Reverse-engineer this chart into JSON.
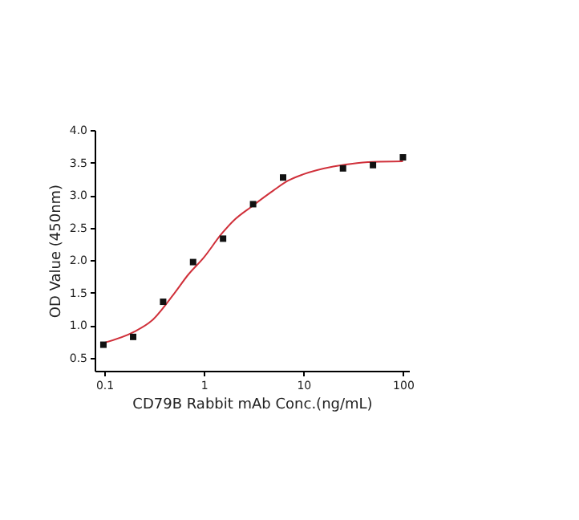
{
  "chart_data": {
    "type": "scatter",
    "xlabel": "CD79B Rabbit mAb Conc.(ng/mL)",
    "ylabel": "OD Value (450nm)",
    "log": "x",
    "xlim": [
      0.08,
      115
    ],
    "xticks": [
      0.1,
      1,
      10,
      100
    ],
    "ylim": [
      0.3,
      4.0
    ],
    "yticks": [
      0.5,
      {
        "value": 1.0,
        "label": "1.0"
      },
      1.5,
      {
        "value": 2.0,
        "label": "2.0"
      },
      2.5,
      {
        "value": 3.0,
        "label": "3.0"
      },
      3.5,
      {
        "value": 4.0,
        "label": "4.0"
      }
    ],
    "grid": false,
    "series": [
      {
        "color": "#111111",
        "marker": "square",
        "x": [
          0.098,
          0.195,
          0.39,
          0.78,
          1.56,
          3.125,
          6.25,
          25,
          50,
          100
        ],
        "values": [
          0.7,
          0.82,
          1.36,
          1.97,
          2.33,
          2.86,
          3.27,
          3.41,
          3.46,
          3.58
        ]
      },
      {
        "type": "line",
        "color": "#d0303a",
        "x": [
          0.1,
          0.2,
          0.3,
          0.5,
          0.7,
          1,
          1.5,
          2,
          3,
          5,
          7,
          10,
          20,
          30,
          50,
          100
        ],
        "values": [
          0.73,
          0.9,
          1.07,
          1.48,
          1.78,
          2.04,
          2.4,
          2.61,
          2.82,
          3.07,
          3.22,
          3.32,
          3.44,
          3.48,
          3.51,
          3.52
        ]
      }
    ]
  }
}
